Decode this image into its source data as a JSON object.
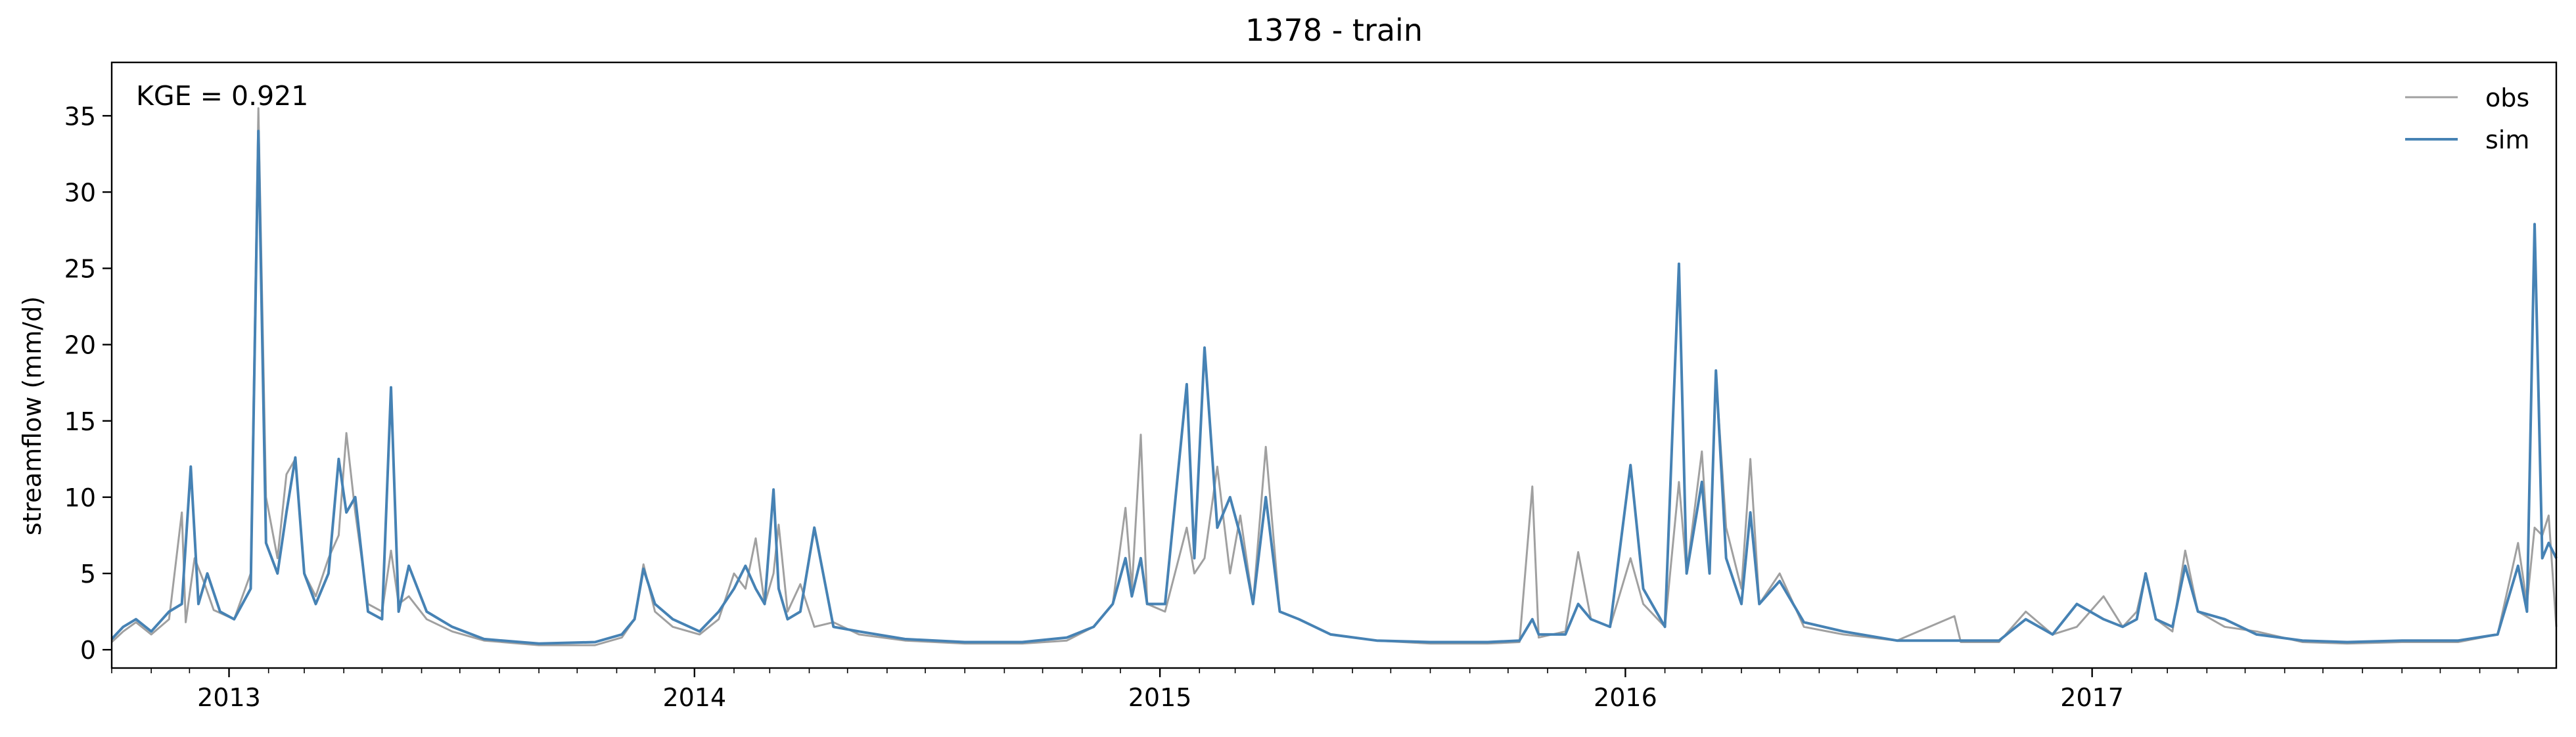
{
  "chart_data": {
    "type": "line",
    "title": "1378 - train",
    "xlabel": "",
    "ylabel": "streamflow (mm/d)",
    "annotation": "KGE = 0.921",
    "xlim": [
      "2012-10-01",
      "2017-12-31"
    ],
    "ylim": [
      -1.2,
      38.5
    ],
    "x_ticks": [
      "2013-01-01",
      "2014-01-01",
      "2015-01-01",
      "2016-01-01",
      "2017-01-01"
    ],
    "x_tick_labels": [
      "2013",
      "2014",
      "2015",
      "2016",
      "2017"
    ],
    "y_ticks": [
      0,
      5,
      10,
      15,
      20,
      25,
      30,
      35
    ],
    "y_tick_labels": [
      "0",
      "5",
      "10",
      "15",
      "20",
      "25",
      "30",
      "35"
    ],
    "grid": false,
    "legend": "top-right",
    "series": [
      {
        "name": "obs",
        "color": "#a0a0a0",
        "points": [
          [
            "2012-10-01",
            0.5
          ],
          [
            "2012-10-10",
            1.2
          ],
          [
            "2012-10-20",
            1.8
          ],
          [
            "2012-11-01",
            1.0
          ],
          [
            "2012-11-15",
            2.0
          ],
          [
            "2012-11-25",
            9.0
          ],
          [
            "2012-11-28",
            1.8
          ],
          [
            "2012-12-05",
            6.0
          ],
          [
            "2012-12-12",
            4.5
          ],
          [
            "2012-12-20",
            2.6
          ],
          [
            "2013-01-05",
            2.0
          ],
          [
            "2013-01-18",
            5.0
          ],
          [
            "2013-01-24",
            35.5
          ],
          [
            "2013-01-30",
            10.0
          ],
          [
            "2013-02-08",
            6.0
          ],
          [
            "2013-02-15",
            11.5
          ],
          [
            "2013-02-22",
            12.5
          ],
          [
            "2013-03-01",
            5.0
          ],
          [
            "2013-03-10",
            3.5
          ],
          [
            "2013-03-20",
            6.0
          ],
          [
            "2013-03-28",
            7.5
          ],
          [
            "2013-04-03",
            14.2
          ],
          [
            "2013-04-10",
            9.0
          ],
          [
            "2013-04-20",
            3.0
          ],
          [
            "2013-05-01",
            2.5
          ],
          [
            "2013-05-08",
            6.5
          ],
          [
            "2013-05-14",
            3.0
          ],
          [
            "2013-05-22",
            3.5
          ],
          [
            "2013-06-05",
            2.0
          ],
          [
            "2013-06-25",
            1.2
          ],
          [
            "2013-07-20",
            0.6
          ],
          [
            "2013-09-01",
            0.3
          ],
          [
            "2013-10-15",
            0.3
          ],
          [
            "2013-11-05",
            0.8
          ],
          [
            "2013-11-15",
            2.0
          ],
          [
            "2013-11-22",
            5.6
          ],
          [
            "2013-12-01",
            2.5
          ],
          [
            "2013-12-15",
            1.5
          ],
          [
            "2014-01-05",
            1.0
          ],
          [
            "2014-01-20",
            2.0
          ],
          [
            "2014-02-01",
            5.0
          ],
          [
            "2014-02-10",
            4.0
          ],
          [
            "2014-02-18",
            7.3
          ],
          [
            "2014-02-25",
            3.0
          ],
          [
            "2014-03-04",
            5.0
          ],
          [
            "2014-03-08",
            8.2
          ],
          [
            "2014-03-15",
            2.5
          ],
          [
            "2014-03-25",
            4.3
          ],
          [
            "2014-04-05",
            1.5
          ],
          [
            "2014-04-20",
            1.8
          ],
          [
            "2014-05-10",
            1.0
          ],
          [
            "2014-06-15",
            0.6
          ],
          [
            "2014-08-01",
            0.4
          ],
          [
            "2014-09-15",
            0.4
          ],
          [
            "2014-10-20",
            0.6
          ],
          [
            "2014-11-10",
            1.5
          ],
          [
            "2014-11-25",
            3.0
          ],
          [
            "2014-12-05",
            9.3
          ],
          [
            "2014-12-10",
            4.0
          ],
          [
            "2014-12-17",
            14.1
          ],
          [
            "2014-12-22",
            3.0
          ],
          [
            "2015-01-05",
            2.5
          ],
          [
            "2015-01-22",
            8.0
          ],
          [
            "2015-01-28",
            5.0
          ],
          [
            "2015-02-05",
            6.0
          ],
          [
            "2015-02-15",
            12.0
          ],
          [
            "2015-02-25",
            5.0
          ],
          [
            "2015-03-05",
            8.8
          ],
          [
            "2015-03-15",
            3.0
          ],
          [
            "2015-03-25",
            13.3
          ],
          [
            "2015-04-05",
            2.5
          ],
          [
            "2015-04-20",
            2.0
          ],
          [
            "2015-05-15",
            1.0
          ],
          [
            "2015-06-20",
            0.6
          ],
          [
            "2015-08-01",
            0.4
          ],
          [
            "2015-09-15",
            0.4
          ],
          [
            "2015-10-10",
            0.5
          ],
          [
            "2015-10-20",
            10.7
          ],
          [
            "2015-10-25",
            0.8
          ],
          [
            "2015-11-15",
            1.2
          ],
          [
            "2015-11-25",
            6.4
          ],
          [
            "2015-12-05",
            2.0
          ],
          [
            "2015-12-20",
            1.5
          ],
          [
            "2016-01-05",
            6.0
          ],
          [
            "2016-01-15",
            3.0
          ],
          [
            "2016-02-01",
            1.5
          ],
          [
            "2016-02-12",
            11.0
          ],
          [
            "2016-02-18",
            5.0
          ],
          [
            "2016-03-01",
            13.0
          ],
          [
            "2016-03-07",
            5.0
          ],
          [
            "2016-03-12",
            18.0
          ],
          [
            "2016-03-20",
            8.0
          ],
          [
            "2016-04-01",
            4.0
          ],
          [
            "2016-04-08",
            12.5
          ],
          [
            "2016-04-15",
            3.0
          ],
          [
            "2016-05-01",
            5.0
          ],
          [
            "2016-05-20",
            1.5
          ],
          [
            "2016-06-20",
            1.0
          ],
          [
            "2016-08-01",
            0.6
          ],
          [
            "2016-09-15",
            2.2
          ],
          [
            "2016-09-20",
            0.5
          ],
          [
            "2016-10-20",
            0.5
          ],
          [
            "2016-11-10",
            2.5
          ],
          [
            "2016-12-01",
            1.0
          ],
          [
            "2016-12-20",
            1.5
          ],
          [
            "2017-01-10",
            3.5
          ],
          [
            "2017-01-25",
            1.5
          ],
          [
            "2017-02-05",
            2.5
          ],
          [
            "2017-02-12",
            5.0
          ],
          [
            "2017-02-20",
            2.0
          ],
          [
            "2017-03-05",
            1.2
          ],
          [
            "2017-03-15",
            6.5
          ],
          [
            "2017-03-25",
            2.5
          ],
          [
            "2017-04-15",
            1.5
          ],
          [
            "2017-05-10",
            1.2
          ],
          [
            "2017-06-15",
            0.5
          ],
          [
            "2017-07-20",
            0.4
          ],
          [
            "2017-09-01",
            0.5
          ],
          [
            "2017-10-15",
            0.5
          ],
          [
            "2017-11-15",
            1.0
          ],
          [
            "2017-12-01",
            7.0
          ],
          [
            "2017-12-08",
            3.0
          ],
          [
            "2017-12-14",
            8.0
          ],
          [
            "2017-12-20",
            7.5
          ],
          [
            "2017-12-25",
            8.8
          ],
          [
            "2017-12-31",
            1.5
          ]
        ]
      },
      {
        "name": "sim",
        "color": "#4682b4",
        "points": [
          [
            "2012-10-01",
            0.7
          ],
          [
            "2012-10-10",
            1.5
          ],
          [
            "2012-10-20",
            2.0
          ],
          [
            "2012-11-01",
            1.2
          ],
          [
            "2012-11-15",
            2.5
          ],
          [
            "2012-11-25",
            3.0
          ],
          [
            "2012-12-02",
            12.0
          ],
          [
            "2012-12-08",
            3.0
          ],
          [
            "2012-12-15",
            5.0
          ],
          [
            "2012-12-25",
            2.5
          ],
          [
            "2013-01-05",
            2.0
          ],
          [
            "2013-01-18",
            4.0
          ],
          [
            "2013-01-24",
            34.0
          ],
          [
            "2013-01-30",
            7.0
          ],
          [
            "2013-02-08",
            5.0
          ],
          [
            "2013-02-15",
            9.0
          ],
          [
            "2013-02-22",
            12.6
          ],
          [
            "2013-03-01",
            5.0
          ],
          [
            "2013-03-10",
            3.0
          ],
          [
            "2013-03-20",
            5.0
          ],
          [
            "2013-03-28",
            12.5
          ],
          [
            "2013-04-03",
            9.0
          ],
          [
            "2013-04-10",
            10.0
          ],
          [
            "2013-04-20",
            2.5
          ],
          [
            "2013-05-01",
            2.0
          ],
          [
            "2013-05-08",
            17.2
          ],
          [
            "2013-05-14",
            2.5
          ],
          [
            "2013-05-22",
            5.5
          ],
          [
            "2013-06-05",
            2.5
          ],
          [
            "2013-06-25",
            1.5
          ],
          [
            "2013-07-20",
            0.7
          ],
          [
            "2013-09-01",
            0.4
          ],
          [
            "2013-10-15",
            0.5
          ],
          [
            "2013-11-05",
            1.0
          ],
          [
            "2013-11-15",
            2.0
          ],
          [
            "2013-11-22",
            5.3
          ],
          [
            "2013-12-01",
            3.0
          ],
          [
            "2013-12-15",
            2.0
          ],
          [
            "2014-01-05",
            1.2
          ],
          [
            "2014-01-20",
            2.5
          ],
          [
            "2014-02-01",
            4.0
          ],
          [
            "2014-02-10",
            5.5
          ],
          [
            "2014-02-18",
            4.0
          ],
          [
            "2014-02-25",
            3.0
          ],
          [
            "2014-03-04",
            10.5
          ],
          [
            "2014-03-08",
            4.0
          ],
          [
            "2014-03-15",
            2.0
          ],
          [
            "2014-03-25",
            2.5
          ],
          [
            "2014-04-05",
            8.0
          ],
          [
            "2014-04-20",
            1.5
          ],
          [
            "2014-05-10",
            1.2
          ],
          [
            "2014-06-15",
            0.7
          ],
          [
            "2014-08-01",
            0.5
          ],
          [
            "2014-09-15",
            0.5
          ],
          [
            "2014-10-20",
            0.8
          ],
          [
            "2014-11-10",
            1.5
          ],
          [
            "2014-11-25",
            3.0
          ],
          [
            "2014-12-05",
            6.0
          ],
          [
            "2014-12-10",
            3.5
          ],
          [
            "2014-12-17",
            6.0
          ],
          [
            "2014-12-22",
            3.0
          ],
          [
            "2015-01-05",
            3.0
          ],
          [
            "2015-01-22",
            17.4
          ],
          [
            "2015-01-28",
            6.0
          ],
          [
            "2015-02-05",
            19.8
          ],
          [
            "2015-02-15",
            8.0
          ],
          [
            "2015-02-25",
            10.0
          ],
          [
            "2015-03-05",
            7.5
          ],
          [
            "2015-03-15",
            3.0
          ],
          [
            "2015-03-25",
            10.0
          ],
          [
            "2015-04-05",
            2.5
          ],
          [
            "2015-04-20",
            2.0
          ],
          [
            "2015-05-15",
            1.0
          ],
          [
            "2015-06-20",
            0.6
          ],
          [
            "2015-08-01",
            0.5
          ],
          [
            "2015-09-15",
            0.5
          ],
          [
            "2015-10-10",
            0.6
          ],
          [
            "2015-10-20",
            2.0
          ],
          [
            "2015-10-25",
            1.0
          ],
          [
            "2015-11-15",
            1.0
          ],
          [
            "2015-11-25",
            3.0
          ],
          [
            "2015-12-05",
            2.0
          ],
          [
            "2015-12-20",
            1.5
          ],
          [
            "2016-01-05",
            12.1
          ],
          [
            "2016-01-15",
            4.0
          ],
          [
            "2016-02-01",
            1.5
          ],
          [
            "2016-02-12",
            25.3
          ],
          [
            "2016-02-18",
            5.0
          ],
          [
            "2016-03-01",
            11.0
          ],
          [
            "2016-03-07",
            5.0
          ],
          [
            "2016-03-12",
            18.3
          ],
          [
            "2016-03-20",
            6.0
          ],
          [
            "2016-04-01",
            3.0
          ],
          [
            "2016-04-08",
            9.0
          ],
          [
            "2016-04-15",
            3.0
          ],
          [
            "2016-05-01",
            4.5
          ],
          [
            "2016-05-20",
            1.8
          ],
          [
            "2016-06-20",
            1.2
          ],
          [
            "2016-08-01",
            0.6
          ],
          [
            "2016-09-15",
            0.6
          ],
          [
            "2016-09-20",
            0.6
          ],
          [
            "2016-10-20",
            0.6
          ],
          [
            "2016-11-10",
            2.0
          ],
          [
            "2016-12-01",
            1.0
          ],
          [
            "2016-12-20",
            3.0
          ],
          [
            "2017-01-10",
            2.0
          ],
          [
            "2017-01-25",
            1.5
          ],
          [
            "2017-02-05",
            2.0
          ],
          [
            "2017-02-12",
            5.0
          ],
          [
            "2017-02-20",
            2.0
          ],
          [
            "2017-03-05",
            1.5
          ],
          [
            "2017-03-15",
            5.5
          ],
          [
            "2017-03-25",
            2.5
          ],
          [
            "2017-04-15",
            2.0
          ],
          [
            "2017-05-10",
            1.0
          ],
          [
            "2017-06-15",
            0.6
          ],
          [
            "2017-07-20",
            0.5
          ],
          [
            "2017-09-01",
            0.6
          ],
          [
            "2017-10-15",
            0.6
          ],
          [
            "2017-11-15",
            1.0
          ],
          [
            "2017-12-01",
            5.5
          ],
          [
            "2017-12-08",
            2.5
          ],
          [
            "2017-12-14",
            27.9
          ],
          [
            "2017-12-20",
            6.0
          ],
          [
            "2017-12-25",
            7.0
          ],
          [
            "2017-12-31",
            6.0
          ]
        ]
      }
    ]
  }
}
